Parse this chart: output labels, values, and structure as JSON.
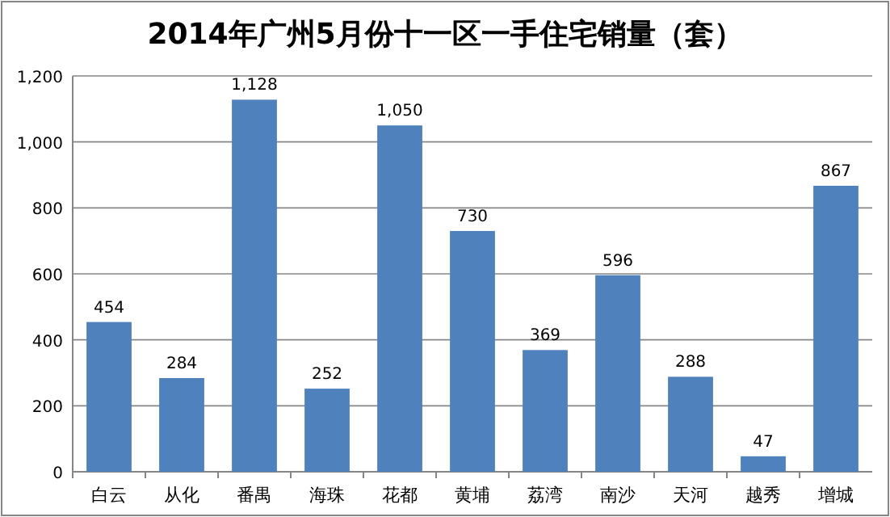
{
  "chart_data": {
    "type": "bar",
    "title": "2014年广州5月份十一区一手住宅销量（套）",
    "categories": [
      "白云",
      "从化",
      "番禺",
      "海珠",
      "花都",
      "黄埔",
      "荔湾",
      "南沙",
      "天河",
      "越秀",
      "增城"
    ],
    "values": [
      454,
      284,
      1128,
      252,
      1050,
      730,
      369,
      596,
      288,
      47,
      867
    ],
    "value_labels": [
      "454",
      "284",
      "1,128",
      "252",
      "1,050",
      "730",
      "369",
      "596",
      "288",
      "47",
      "867"
    ],
    "color": "#4f81bd",
    "ylim": [
      0,
      1200
    ],
    "yticks": [
      0,
      {
        "value": 200,
        "label": "200"
      },
      {
        "value": 400,
        "label": "400"
      },
      {
        "value": 600,
        "label": "600"
      },
      {
        "value": 800,
        "label": "800"
      },
      {
        "value": 1000,
        "label": "1,000"
      },
      {
        "value": 1200,
        "label": "1,200"
      }
    ],
    "grid": "y"
  }
}
